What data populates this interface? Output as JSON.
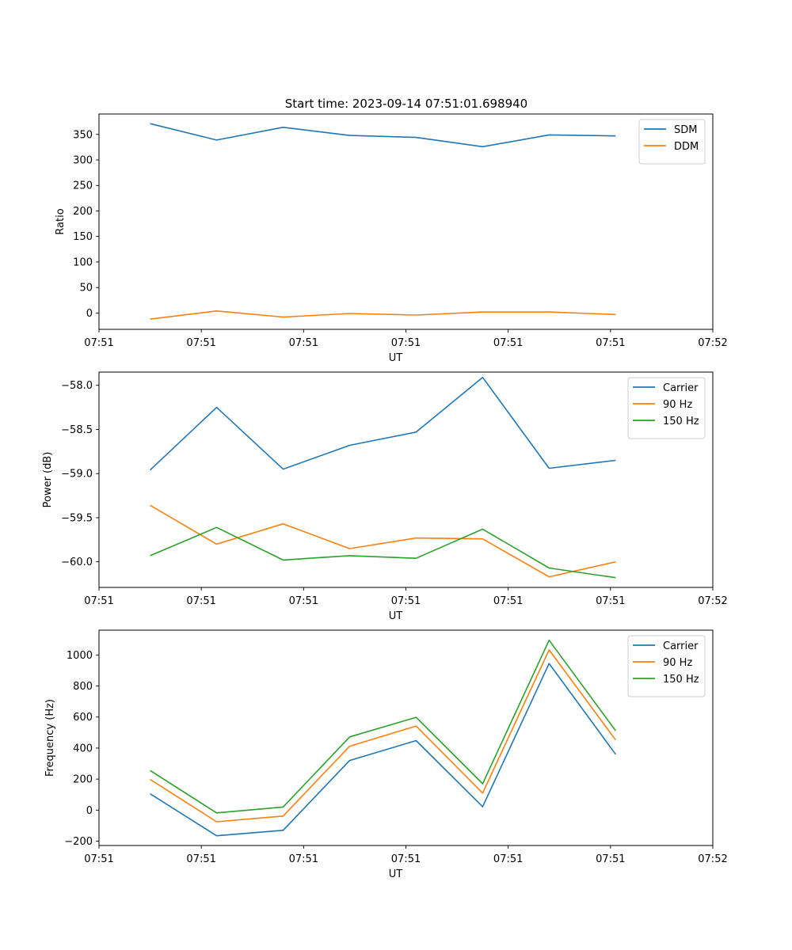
{
  "figure_title": "Start time: 2023-09-14 07:51:01.698940",
  "chart_data": [
    {
      "type": "line",
      "title": "Start time: 2023-09-14 07:51:01.698940",
      "xlabel": "UT",
      "ylabel": "Ratio",
      "x_ticks": [
        "07:51",
        "07:51",
        "07:51",
        "07:51",
        "07:51",
        "07:51",
        "07:52"
      ],
      "xlim": [
        0,
        6
      ],
      "x": [
        0.5,
        1.15,
        1.8,
        2.45,
        3.1,
        3.75,
        4.4,
        5.05
      ],
      "ylim": [
        -32,
        390
      ],
      "y_ticks": [
        0,
        50,
        100,
        150,
        200,
        250,
        300,
        350
      ],
      "legend_position": "upper-right",
      "series": [
        {
          "name": "SDM",
          "color": "#1f77b4",
          "values": [
            371,
            339,
            364,
            348,
            344,
            326,
            349,
            347
          ]
        },
        {
          "name": "DDM",
          "color": "#ff7f0e",
          "values": [
            -12,
            4,
            -8,
            -1,
            -4,
            2,
            2,
            -3
          ]
        }
      ]
    },
    {
      "type": "line",
      "title": "",
      "xlabel": "UT",
      "ylabel": "Power (dB)",
      "x_ticks": [
        "07:51",
        "07:51",
        "07:51",
        "07:51",
        "07:51",
        "07:51",
        "07:52"
      ],
      "xlim": [
        0,
        6
      ],
      "x": [
        0.5,
        1.15,
        1.8,
        2.45,
        3.1,
        3.75,
        4.4,
        5.05
      ],
      "ylim": [
        -60.29,
        -57.85
      ],
      "y_ticks": [
        -60.0,
        -59.5,
        -59.0,
        -58.5,
        -58.0
      ],
      "y_tick_labels": [
        "−60.0",
        "−59.5",
        "−59.0",
        "−58.5",
        "−58.0"
      ],
      "legend_position": "upper-right",
      "series": [
        {
          "name": "Carrier",
          "color": "#1f77b4",
          "values": [
            -58.96,
            -58.25,
            -58.95,
            -58.68,
            -58.53,
            -57.91,
            -58.94,
            -58.85
          ]
        },
        {
          "name": "90 Hz",
          "color": "#ff7f0e",
          "values": [
            -59.36,
            -59.8,
            -59.57,
            -59.85,
            -59.73,
            -59.74,
            -60.17,
            -60.0
          ]
        },
        {
          "name": "150 Hz",
          "color": "#2ca02c",
          "values": [
            -59.93,
            -59.61,
            -59.98,
            -59.93,
            -59.96,
            -59.63,
            -60.07,
            -60.18
          ]
        }
      ]
    },
    {
      "type": "line",
      "title": "",
      "xlabel": "UT",
      "ylabel": "Frequency (Hz)",
      "x_ticks": [
        "07:51",
        "07:51",
        "07:51",
        "07:51",
        "07:51",
        "07:51",
        "07:52"
      ],
      "xlim": [
        0,
        6
      ],
      "x": [
        0.5,
        1.15,
        1.8,
        2.45,
        3.1,
        3.75,
        4.4,
        5.05
      ],
      "ylim": [
        -228,
        1160
      ],
      "y_ticks": [
        -200,
        0,
        200,
        400,
        600,
        800,
        1000
      ],
      "y_tick_labels": [
        "−200",
        "0",
        "200",
        "400",
        "600",
        "800",
        "1000"
      ],
      "legend_position": "upper-right",
      "series": [
        {
          "name": "Carrier",
          "color": "#1f77b4",
          "values": [
            105,
            -165,
            -130,
            320,
            448,
            22,
            945,
            360
          ]
        },
        {
          "name": "90 Hz",
          "color": "#ff7f0e",
          "values": [
            198,
            -75,
            -38,
            412,
            542,
            110,
            1033,
            452
          ]
        },
        {
          "name": "150 Hz",
          "color": "#2ca02c",
          "values": [
            255,
            -18,
            20,
            472,
            598,
            170,
            1095,
            512
          ]
        }
      ]
    }
  ]
}
